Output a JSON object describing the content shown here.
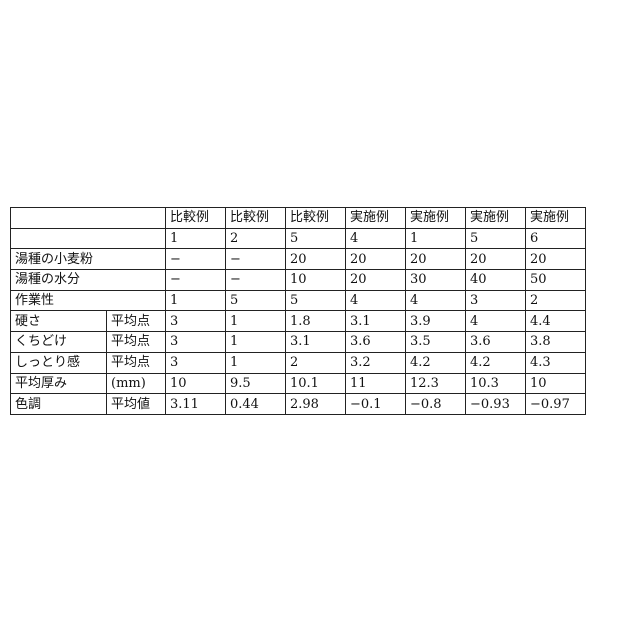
{
  "table": {
    "header": [
      "比較例",
      "比較例",
      "比較例",
      "実施例",
      "実施例",
      "実施例",
      "実施例"
    ],
    "numbers": [
      "1",
      "2",
      "5",
      "4",
      "1",
      "5",
      "6"
    ],
    "rows": [
      {
        "label": "湯種の小麦粉",
        "unit": "",
        "values": [
          "−",
          "−",
          "20",
          "20",
          "20",
          "20",
          "20"
        ]
      },
      {
        "label": "湯種の水分",
        "unit": "",
        "values": [
          "−",
          "−",
          "10",
          "20",
          "30",
          "40",
          "50"
        ]
      },
      {
        "label": "作業性",
        "unit": "",
        "values": [
          "1",
          "5",
          "5",
          "4",
          "4",
          "3",
          "2"
        ]
      },
      {
        "label": "硬さ",
        "unit": "平均点",
        "values": [
          "3",
          "1",
          "1.8",
          "3.1",
          "3.9",
          "4",
          "4.4"
        ]
      },
      {
        "label": "くちどけ",
        "unit": "平均点",
        "values": [
          "3",
          "1",
          "3.1",
          "3.6",
          "3.5",
          "3.6",
          "3.8"
        ]
      },
      {
        "label": "しっとり感",
        "unit": "平均点",
        "values": [
          "3",
          "1",
          "2",
          "3.2",
          "4.2",
          "4.2",
          "4.3"
        ]
      },
      {
        "label": "平均厚み",
        "unit": "(mm)",
        "values": [
          "10",
          "9.5",
          "10.1",
          "11",
          "12.3",
          "10.3",
          "10"
        ]
      },
      {
        "label": "色調",
        "unit": "平均値",
        "values": [
          "3.11",
          "0.44",
          "2.98",
          "−0.1",
          "−0.8",
          "−0.93",
          "−0.97"
        ]
      }
    ]
  }
}
